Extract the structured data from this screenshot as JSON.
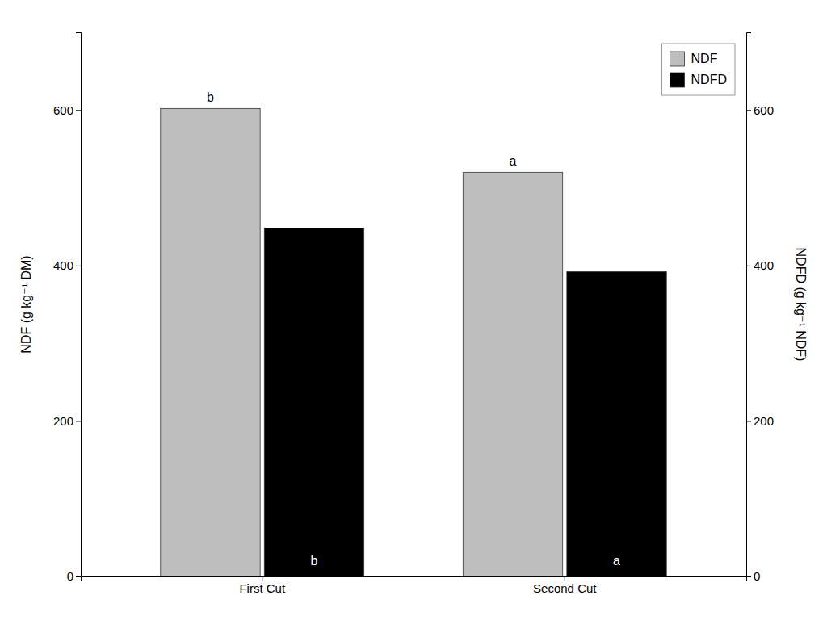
{
  "chart_data": {
    "type": "bar",
    "categories": [
      "First Cut",
      "Second Cut"
    ],
    "series": [
      {
        "name": "NDF",
        "color": "#bebebe",
        "values": [
          602,
          520
        ],
        "annotations": [
          "b",
          "a"
        ]
      },
      {
        "name": "NDFD",
        "color": "#000000",
        "values": [
          448,
          392
        ],
        "annotations": [
          "b",
          "a"
        ],
        "axis": "y2"
      }
    ],
    "ylabel": "NDF (g kg⁻¹ DM)",
    "y2label": "NDFD (g kg⁻¹ NDF)",
    "ylim": [
      0,
      700
    ],
    "yticks": [
      0,
      200,
      400,
      600
    ],
    "y2lim": [
      0,
      700
    ],
    "y2ticks": [
      0,
      200,
      400,
      600
    ],
    "legend": "upper right",
    "grid": false
  }
}
